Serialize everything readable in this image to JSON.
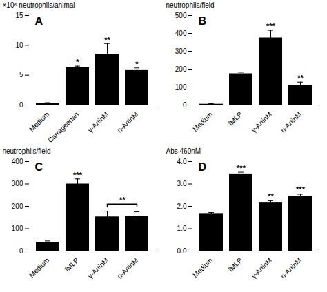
{
  "chart_data": [
    {
      "type": "bar",
      "title": "A",
      "categories": [
        "Medium",
        "Carrageenan",
        "γ-ArtinM",
        "n-ArtinM"
      ],
      "values": [
        0.3,
        6.3,
        8.5,
        5.9
      ],
      "errors": [
        0.1,
        0.2,
        1.8,
        0.3
      ],
      "ylabel": "×10⁶ neutrophils/animal",
      "ylim": [
        0,
        15
      ],
      "yticks": [
        0,
        5,
        10,
        15
      ],
      "annotations": [
        {
          "text": "*",
          "x": "Carrageenan",
          "y": 6.7
        },
        {
          "text": "**",
          "x": "γ-ArtinM",
          "y": 10.5
        },
        {
          "text": "*",
          "x": "n-ArtinM",
          "y": 6.4
        }
      ]
    },
    {
      "type": "bar",
      "title": "B",
      "categories": [
        "Medium",
        "fMLP",
        "γ-ArtinM",
        "n-ArtinM"
      ],
      "values": [
        5,
        175,
        375,
        110
      ],
      "errors": [
        3,
        8,
        42,
        18
      ],
      "ylabel": "neutrophils/field",
      "ylim": [
        0,
        500
      ],
      "yticks": [
        0,
        100,
        200,
        300,
        400,
        500
      ],
      "annotations": [
        {
          "text": "***",
          "x": "γ-ArtinM",
          "y": 424
        },
        {
          "text": "**",
          "x": "n-ArtinM",
          "y": 136
        }
      ]
    },
    {
      "type": "bar",
      "title": "C",
      "categories": [
        "Medium",
        "fMLP",
        "γ-ArtinM",
        "n-ArtinM"
      ],
      "values": [
        40,
        300,
        153,
        157
      ],
      "errors": [
        5,
        22,
        25,
        18
      ],
      "ylabel": "neutrophils/field",
      "ylim": [
        0,
        400
      ],
      "yticks": [
        0,
        100,
        200,
        300,
        400
      ],
      "annotations": [
        {
          "text": "***",
          "x": "fMLP",
          "y": 328
        },
        {
          "text": "**",
          "x": [
            "γ-ArtinM",
            "n-ArtinM"
          ],
          "y": 210
        }
      ]
    },
    {
      "type": "bar",
      "title": "D",
      "categories": [
        "Medium",
        "fMLP",
        "γ-ArtinM",
        "n-ArtinM"
      ],
      "values": [
        1.65,
        3.45,
        2.15,
        2.45
      ],
      "errors": [
        0.07,
        0.07,
        0.1,
        0.09
      ],
      "ylabel": "Abs 460nM",
      "ylim": [
        0,
        4
      ],
      "yticks": [
        0,
        1,
        2,
        3,
        4
      ],
      "annotations": [
        {
          "text": "***",
          "x": "fMLP",
          "y": 3.6
        },
        {
          "text": "**",
          "x": "γ-ArtinM",
          "y": 2.33
        },
        {
          "text": "***",
          "x": "n-ArtinM",
          "y": 2.62
        }
      ]
    }
  ]
}
